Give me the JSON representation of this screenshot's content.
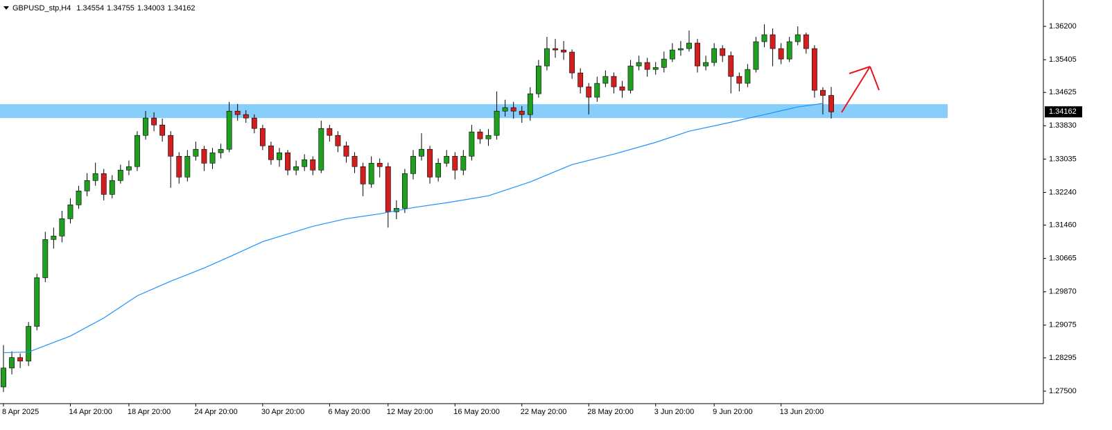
{
  "chart_data": {
    "type": "candlestick",
    "title": "GBPUSD_stp,H4",
    "ylim": [
      1.27202,
      1.36829
    ],
    "yticks": [
      {
        "value": 1.362,
        "label": "1.36200"
      },
      {
        "value": 1.35405,
        "label": "1.35405"
      },
      {
        "value": 1.34625,
        "label": "1.34625"
      },
      {
        "value": 1.3383,
        "label": "1.33830"
      },
      {
        "value": 1.33035,
        "label": "1.33035"
      },
      {
        "value": 1.3224,
        "label": "1.32240"
      },
      {
        "value": 1.3146,
        "label": "1.31460"
      },
      {
        "value": 1.30665,
        "label": "1.30665"
      },
      {
        "value": 1.2987,
        "label": "1.29870"
      },
      {
        "value": 1.29075,
        "label": "1.29075"
      },
      {
        "value": 1.28295,
        "label": "1.28295"
      },
      {
        "value": 1.275,
        "label": "1.27500"
      }
    ],
    "xticks": [
      {
        "value": 0,
        "label": "8 Apr 2025"
      },
      {
        "value": 8,
        "label": "14 Apr 20:00"
      },
      {
        "value": 15,
        "label": "18 Apr 20:00"
      },
      {
        "value": 23,
        "label": "24 Apr 20:00"
      },
      {
        "value": 31,
        "label": "30 Apr 20:00"
      },
      {
        "value": 39,
        "label": "6 May 20:00"
      },
      {
        "value": 46,
        "label": "12 May 20:00"
      },
      {
        "value": 54,
        "label": "16 May 20:00"
      },
      {
        "value": 62,
        "label": "22 May 20:00"
      },
      {
        "value": 70,
        "label": "28 May 20:00"
      },
      {
        "value": 78,
        "label": "3 Jun 20:00"
      },
      {
        "value": 85,
        "label": "9 Jun 20:00"
      },
      {
        "value": 93,
        "label": "13 Jun 20:00"
      }
    ],
    "up_color": "#1f9e1f",
    "down_color": "#d11f1f",
    "open": [
      1.276,
      1.28052,
      1.28301,
      1.28218,
      1.29046,
      1.30205,
      1.31116,
      1.31199,
      1.31613,
      1.31944,
      1.32275,
      1.32523,
      1.32689,
      1.32192,
      1.32523,
      1.32772,
      1.32855,
      1.336,
      1.34014,
      1.33848,
      1.336,
      1.33103,
      1.32606,
      1.33103,
      1.33269,
      1.32937,
      1.33186,
      1.33269,
      1.34179,
      1.34097,
      1.34014,
      1.33765,
      1.33351,
      1.3302,
      1.33186,
      1.32772,
      1.32855,
      1.3302,
      1.32772,
      1.33765,
      1.336,
      1.33351,
      1.33103,
      1.32855,
      1.32441,
      1.32937,
      1.32855,
      1.31778,
      1.31861,
      1.32689,
      1.33103,
      1.33269,
      1.32606,
      1.32937,
      1.33103,
      1.32772,
      1.33103,
      1.33683,
      1.33517,
      1.336,
      1.34179,
      1.34262,
      1.34179,
      1.34097,
      1.34593,
      1.35256,
      1.3567,
      1.35637,
      1.35587,
      1.3509,
      1.34759,
      1.34511,
      1.34842,
      1.35007,
      1.34759,
      1.34676,
      1.35256,
      1.35339,
      1.35173,
      1.3522,
      1.35421,
      1.35637,
      1.3567,
      1.35802,
      1.35256,
      1.35339,
      1.3567,
      1.35504,
      1.35007,
      1.34842,
      1.35173,
      1.35835,
      1.36001,
      1.3567,
      1.35421,
      1.35835,
      1.36001,
      1.3567,
      1.34676,
      1.34554
    ],
    "high": [
      1.286,
      1.2845,
      1.284,
      1.2915,
      1.303,
      1.313,
      1.314,
      1.318,
      1.321,
      1.324,
      1.327,
      1.3295,
      1.328,
      1.3265,
      1.329,
      1.33,
      1.337,
      1.3418,
      1.3415,
      1.34,
      1.337,
      1.332,
      1.3325,
      1.3345,
      1.3335,
      1.333,
      1.334,
      1.344,
      1.3435,
      1.342,
      1.341,
      1.3385,
      1.3345,
      1.333,
      1.3325,
      1.33,
      1.3315,
      1.331,
      1.3395,
      1.3385,
      1.337,
      1.3345,
      1.332,
      1.3295,
      1.331,
      1.3305,
      1.3295,
      1.3205,
      1.328,
      1.3325,
      1.3365,
      1.3335,
      1.3305,
      1.3325,
      1.332,
      1.3325,
      1.3385,
      1.3375,
      1.3375,
      1.3465,
      1.3445,
      1.344,
      1.343,
      1.3475,
      1.354,
      1.3595,
      1.359,
      1.3585,
      1.3565,
      1.352,
      1.3485,
      1.35,
      1.3515,
      1.351,
      1.349,
      1.354,
      1.355,
      1.3545,
      1.3535,
      1.356,
      1.358,
      1.3585,
      1.361,
      1.359,
      1.355,
      1.358,
      1.3575,
      1.356,
      1.351,
      1.353,
      1.3595,
      1.3625,
      1.3615,
      1.358,
      1.3595,
      1.362,
      1.3605,
      1.3575,
      1.3475,
      1.34755
    ],
    "low": [
      1.2748,
      1.279,
      1.2805,
      1.281,
      1.2895,
      1.301,
      1.309,
      1.3105,
      1.315,
      1.3185,
      1.3215,
      1.324,
      1.3205,
      1.321,
      1.3245,
      1.3265,
      1.3275,
      1.335,
      1.337,
      1.3345,
      1.3235,
      1.3245,
      1.325,
      1.33,
      1.3275,
      1.328,
      1.3305,
      1.332,
      1.3395,
      1.339,
      1.3365,
      1.3325,
      1.329,
      1.3285,
      1.3265,
      1.3265,
      1.3275,
      1.3265,
      1.327,
      1.3345,
      1.332,
      1.3295,
      1.327,
      1.3215,
      1.3235,
      1.326,
      1.314,
      1.316,
      1.3175,
      1.3255,
      1.33,
      1.3245,
      1.325,
      1.3285,
      1.3255,
      1.3265,
      1.33,
      1.334,
      1.3335,
      1.335,
      1.3405,
      1.34,
      1.339,
      1.3395,
      1.345,
      1.3515,
      1.3545,
      1.354,
      1.3495,
      1.346,
      1.341,
      1.344,
      1.3475,
      1.346,
      1.345,
      1.346,
      1.3515,
      1.35,
      1.3505,
      1.351,
      1.3535,
      1.355,
      1.356,
      1.351,
      1.3515,
      1.3525,
      1.3535,
      1.346,
      1.3465,
      1.3475,
      1.351,
      1.357,
      1.3525,
      1.353,
      1.3535,
      1.3575,
      1.3555,
      1.345,
      1.341,
      1.34003
    ],
    "close": [
      1.28052,
      1.28301,
      1.28218,
      1.29046,
      1.30205,
      1.31116,
      1.31199,
      1.31613,
      1.31944,
      1.32275,
      1.32523,
      1.32689,
      1.32192,
      1.32523,
      1.32772,
      1.32855,
      1.336,
      1.34014,
      1.33848,
      1.336,
      1.33103,
      1.32606,
      1.33103,
      1.33269,
      1.32937,
      1.33186,
      1.33269,
      1.34179,
      1.34097,
      1.34014,
      1.33765,
      1.33351,
      1.3302,
      1.33186,
      1.32772,
      1.32855,
      1.3302,
      1.32772,
      1.33765,
      1.336,
      1.33351,
      1.33103,
      1.32855,
      1.32441,
      1.32937,
      1.32855,
      1.31778,
      1.31861,
      1.32689,
      1.33103,
      1.33269,
      1.32606,
      1.32937,
      1.33103,
      1.32772,
      1.33103,
      1.33683,
      1.33517,
      1.336,
      1.34179,
      1.34262,
      1.34179,
      1.34097,
      1.34593,
      1.35256,
      1.3567,
      1.35637,
      1.35587,
      1.3509,
      1.34759,
      1.34511,
      1.34842,
      1.35007,
      1.34759,
      1.34676,
      1.35256,
      1.35339,
      1.35173,
      1.3522,
      1.35421,
      1.35637,
      1.3567,
      1.35802,
      1.35256,
      1.35339,
      1.3567,
      1.35504,
      1.35007,
      1.34842,
      1.35173,
      1.35835,
      1.36001,
      1.3567,
      1.35421,
      1.35835,
      1.36001,
      1.3567,
      1.34676,
      1.34554,
      1.34162
    ],
    "ma": {
      "color": "#1e90ff",
      "x": [
        0,
        3,
        8,
        12,
        16,
        20,
        24,
        27,
        31,
        37,
        41,
        45,
        49,
        53,
        58,
        63,
        68,
        73,
        78,
        82,
        87,
        91,
        95,
        98
      ],
      "values": [
        1.28417,
        1.28433,
        1.28814,
        1.29245,
        1.29774,
        1.30122,
        1.30437,
        1.30702,
        1.31066,
        1.31431,
        1.31613,
        1.31729,
        1.31878,
        1.31993,
        1.32159,
        1.3249,
        1.32904,
        1.33153,
        1.33434,
        1.33699,
        1.33914,
        1.34097,
        1.34279,
        1.34362
      ]
    },
    "support_zone": {
      "low": 1.34013,
      "high": 1.34345,
      "color": "#87cefa"
    }
  }
}
